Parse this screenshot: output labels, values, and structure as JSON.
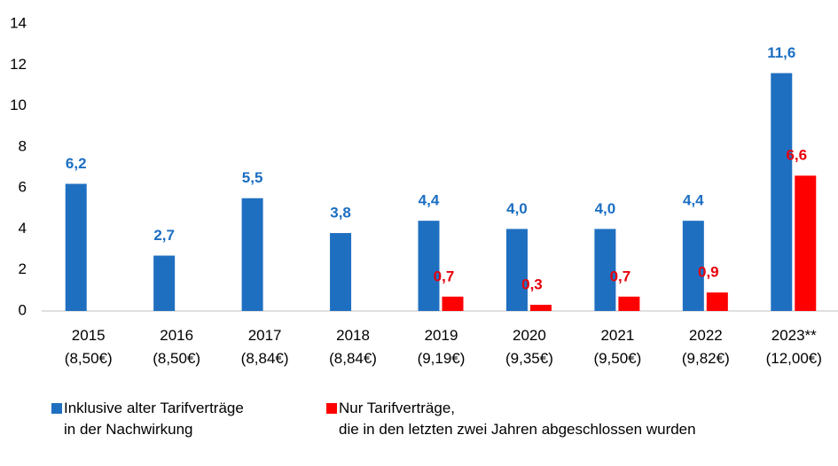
{
  "chart_data": {
    "type": "bar",
    "categories": [
      "2015\n(8,50€)",
      "2016\n(8,50€)",
      "2017\n(8,84€)",
      "2018\n(8,84€)",
      "2019\n(9,19€)",
      "2020\n(9,35€)",
      "2021\n(9,50€)",
      "2022\n(9,82€)",
      "2023**\n(12,00€)"
    ],
    "series": [
      {
        "name": "Inklusive alter Tarifverträge\nin der Nachwirkung",
        "color": "#1f6fc1",
        "label_color": "#1b6ec2",
        "values": [
          6.2,
          2.7,
          5.5,
          3.8,
          4.4,
          4.0,
          4.0,
          4.4,
          11.6
        ],
        "value_labels": [
          "6,2",
          "2,7",
          "5,5",
          "3,8",
          "4,4",
          "4,0",
          "4,0",
          "4,4",
          "11,6"
        ]
      },
      {
        "name": "Nur Tarifverträge,\ndie in den letzten zwei Jahren abgeschlossen wurden",
        "color": "#ff0000",
        "label_color": "#e8000b",
        "values": [
          null,
          null,
          null,
          null,
          0.7,
          0.3,
          0.7,
          0.9,
          6.6
        ],
        "value_labels": [
          null,
          null,
          null,
          null,
          "0,7",
          "0,3",
          "0,7",
          "0,9",
          "6,6"
        ]
      }
    ],
    "ylim": [
      0,
      14
    ],
    "yticks": [
      0,
      2,
      4,
      6,
      8,
      10,
      12,
      14
    ],
    "grid": false
  }
}
